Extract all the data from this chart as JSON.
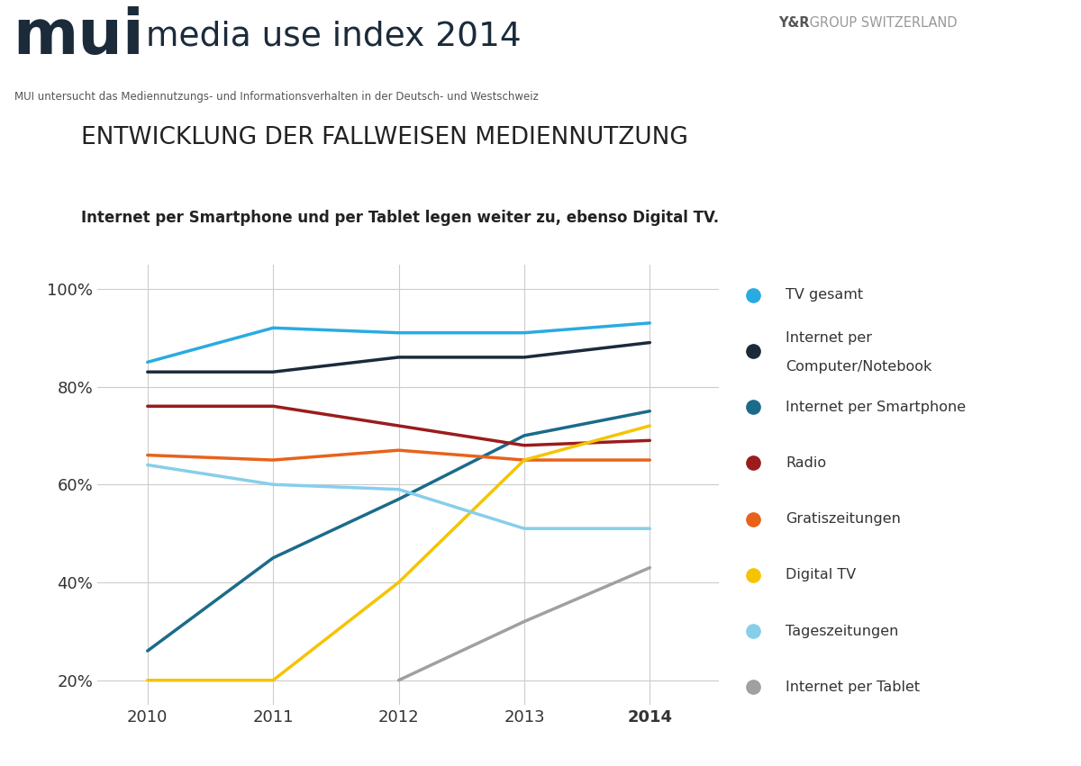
{
  "years": [
    2010,
    2011,
    2012,
    2013,
    2014
  ],
  "series": {
    "TV gesamt": {
      "values": [
        85,
        92,
        91,
        91,
        93
      ],
      "color": "#29ABE2",
      "linewidth": 2.5
    },
    "Internet per Computer/Notebook": {
      "values": [
        83,
        83,
        86,
        86,
        89
      ],
      "color": "#1B2A3B",
      "linewidth": 2.5
    },
    "Internet per Smartphone": {
      "values": [
        26,
        45,
        57,
        70,
        75
      ],
      "color": "#1B6B8A",
      "linewidth": 2.5
    },
    "Radio": {
      "values": [
        76,
        76,
        72,
        68,
        69
      ],
      "color": "#9B1C1C",
      "linewidth": 2.5
    },
    "Gratiszeitungen": {
      "values": [
        66,
        65,
        67,
        65,
        65
      ],
      "color": "#E8621A",
      "linewidth": 2.5
    },
    "Digital TV": {
      "values": [
        20,
        20,
        40,
        65,
        72
      ],
      "color": "#F5C400",
      "linewidth": 2.5
    },
    "Tageszeitungen": {
      "values": [
        64,
        60,
        59,
        51,
        51
      ],
      "color": "#87CEEB",
      "linewidth": 2.5
    },
    "Internet per Tablet": {
      "values": [
        null,
        null,
        20,
        32,
        43
      ],
      "color": "#A0A0A0",
      "linewidth": 2.5
    }
  },
  "legend_order": [
    "TV gesamt",
    "Internet per Computer/Notebook",
    "Internet per Smartphone",
    "Radio",
    "Gratiszeitungen",
    "Digital TV",
    "Tageszeitungen",
    "Internet per Tablet"
  ],
  "legend_colors": {
    "TV gesamt": "#29ABE2",
    "Internet per Computer/Notebook": "#1B2A3B",
    "Internet per Smartphone": "#1B6B8A",
    "Radio": "#9B1C1C",
    "Gratiszeitungen": "#E8621A",
    "Digital TV": "#F5C400",
    "Tageszeitungen": "#87CEEB",
    "Internet per Tablet": "#A0A0A0"
  },
  "title": "ENTWICKLUNG DER FALLWEISEN MEDIENNUTZUNG",
  "subtitle": "Internet per Smartphone und per Tablet legen weiter zu, ebenso Digital TV.",
  "header_bg_color": "#C8D3DA",
  "header_subtext": "MUI untersucht das Mediennutzungs- und Informationsverhalten in der Deutsch- und Westschweiz",
  "yr_bold": "Y&R",
  "yr_rest": " GROUP SWITZERLAND",
  "plot_bg_color": "#FFFFFF",
  "fig_bg_color": "#FFFFFF",
  "ylim": [
    15,
    105
  ],
  "yticks": [
    20,
    40,
    60,
    80,
    100
  ],
  "grid_color": "#CCCCCC",
  "xlim_left": 2009.6,
  "xlim_right": 2014.55
}
